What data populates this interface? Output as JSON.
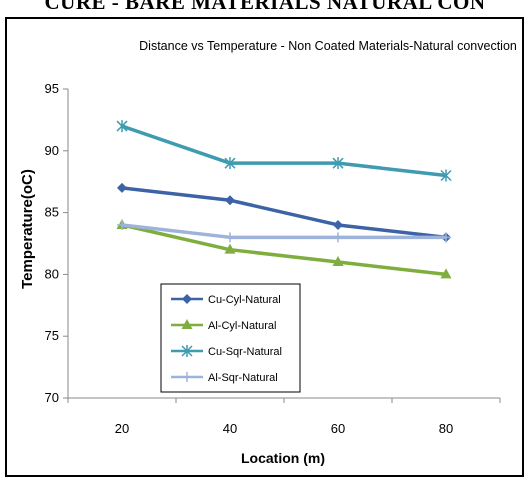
{
  "page_heading": "CURE - BARE MATERIALS NATURAL CON",
  "chart_data": {
    "type": "line",
    "title": "Distance vs Temperature  - Non Coated Materials-Natural convection",
    "xlabel": "Location (m)",
    "ylabel": "Temperature(oC)",
    "x": [
      20,
      40,
      60,
      80
    ],
    "xlim": [
      10,
      90
    ],
    "ylim": [
      70,
      95
    ],
    "xticks": [
      20,
      40,
      60,
      80
    ],
    "yticks": [
      70,
      75,
      80,
      85,
      90,
      95
    ],
    "grid": false,
    "legend_position": "bottom-left",
    "series": [
      {
        "name": "Cu-Cyl-Natural",
        "values": [
          87,
          86,
          84,
          83
        ],
        "color": "#3B63A6",
        "marker": "diamond"
      },
      {
        "name": "Al-Cyl-Natural",
        "values": [
          84,
          82,
          81,
          80
        ],
        "color": "#7FAE3E",
        "marker": "triangle"
      },
      {
        "name": "Cu-Sqr-Natural",
        "values": [
          92,
          89,
          89,
          88
        ],
        "color": "#3E9BB0",
        "marker": "star"
      },
      {
        "name": "Al-Sqr-Natural",
        "values": [
          84,
          83,
          83,
          83
        ],
        "color": "#9DB3DB",
        "marker": "plus"
      }
    ]
  }
}
